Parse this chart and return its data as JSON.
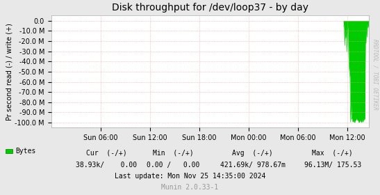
{
  "title": "Disk throughput for /dev/loop37 - by day",
  "ylabel": "Pr second read (-) / write (+)",
  "background_color": "#e8e8e8",
  "plot_bg_color": "#ffffff",
  "grid_color": "#ff9999",
  "line_color": "#00cc00",
  "yticks": [
    0.0,
    -10.0,
    -20.0,
    -30.0,
    -40.0,
    -50.0,
    -60.0,
    -70.0,
    -80.0,
    -90.0,
    -100.0
  ],
  "ytick_labels": [
    "0.0",
    "-10.0 M",
    "-20.0 M",
    "-30.0 M",
    "-40.0 M",
    "-50.0 M",
    "-60.0 M",
    "-70.0 M",
    "-80.0 M",
    "-90.0 M",
    "-100.0 M"
  ],
  "xtick_labels": [
    "Sun 06:00",
    "Sun 12:00",
    "Sun 18:00",
    "Mon 00:00",
    "Mon 06:00",
    "Mon 12:00"
  ],
  "xtick_positions": [
    6,
    12,
    18,
    24,
    30,
    36
  ],
  "xlim": [
    0,
    38.58
  ],
  "ylim": [
    -105.0,
    5.0
  ],
  "legend_label": "Bytes",
  "legend_color": "#00cc00",
  "cur_label": "Cur  (-/+)",
  "cur_val": "38.93k/    0.00",
  "min_label": "Min  (-/+)",
  "min_val": "0.00 /   0.00",
  "avg_label": "Avg  (-/+)",
  "avg_val": "421.69k/ 978.67m",
  "max_label": "Max  (-/+)",
  "max_val": "96.13M/ 175.53",
  "last_update": "Last update: Mon Nov 25 14:35:00 2024",
  "munin_version": "Munin 2.0.33-1",
  "watermark": "RRDTOOL / TOBI OETIKER",
  "title_fontsize": 10,
  "axis_label_fontsize": 7,
  "tick_fontsize": 7,
  "legend_fontsize": 7,
  "watermark_fontsize": 5.5,
  "spike_start_hour": 35.5,
  "total_hours": 38.58,
  "n_points": 600
}
